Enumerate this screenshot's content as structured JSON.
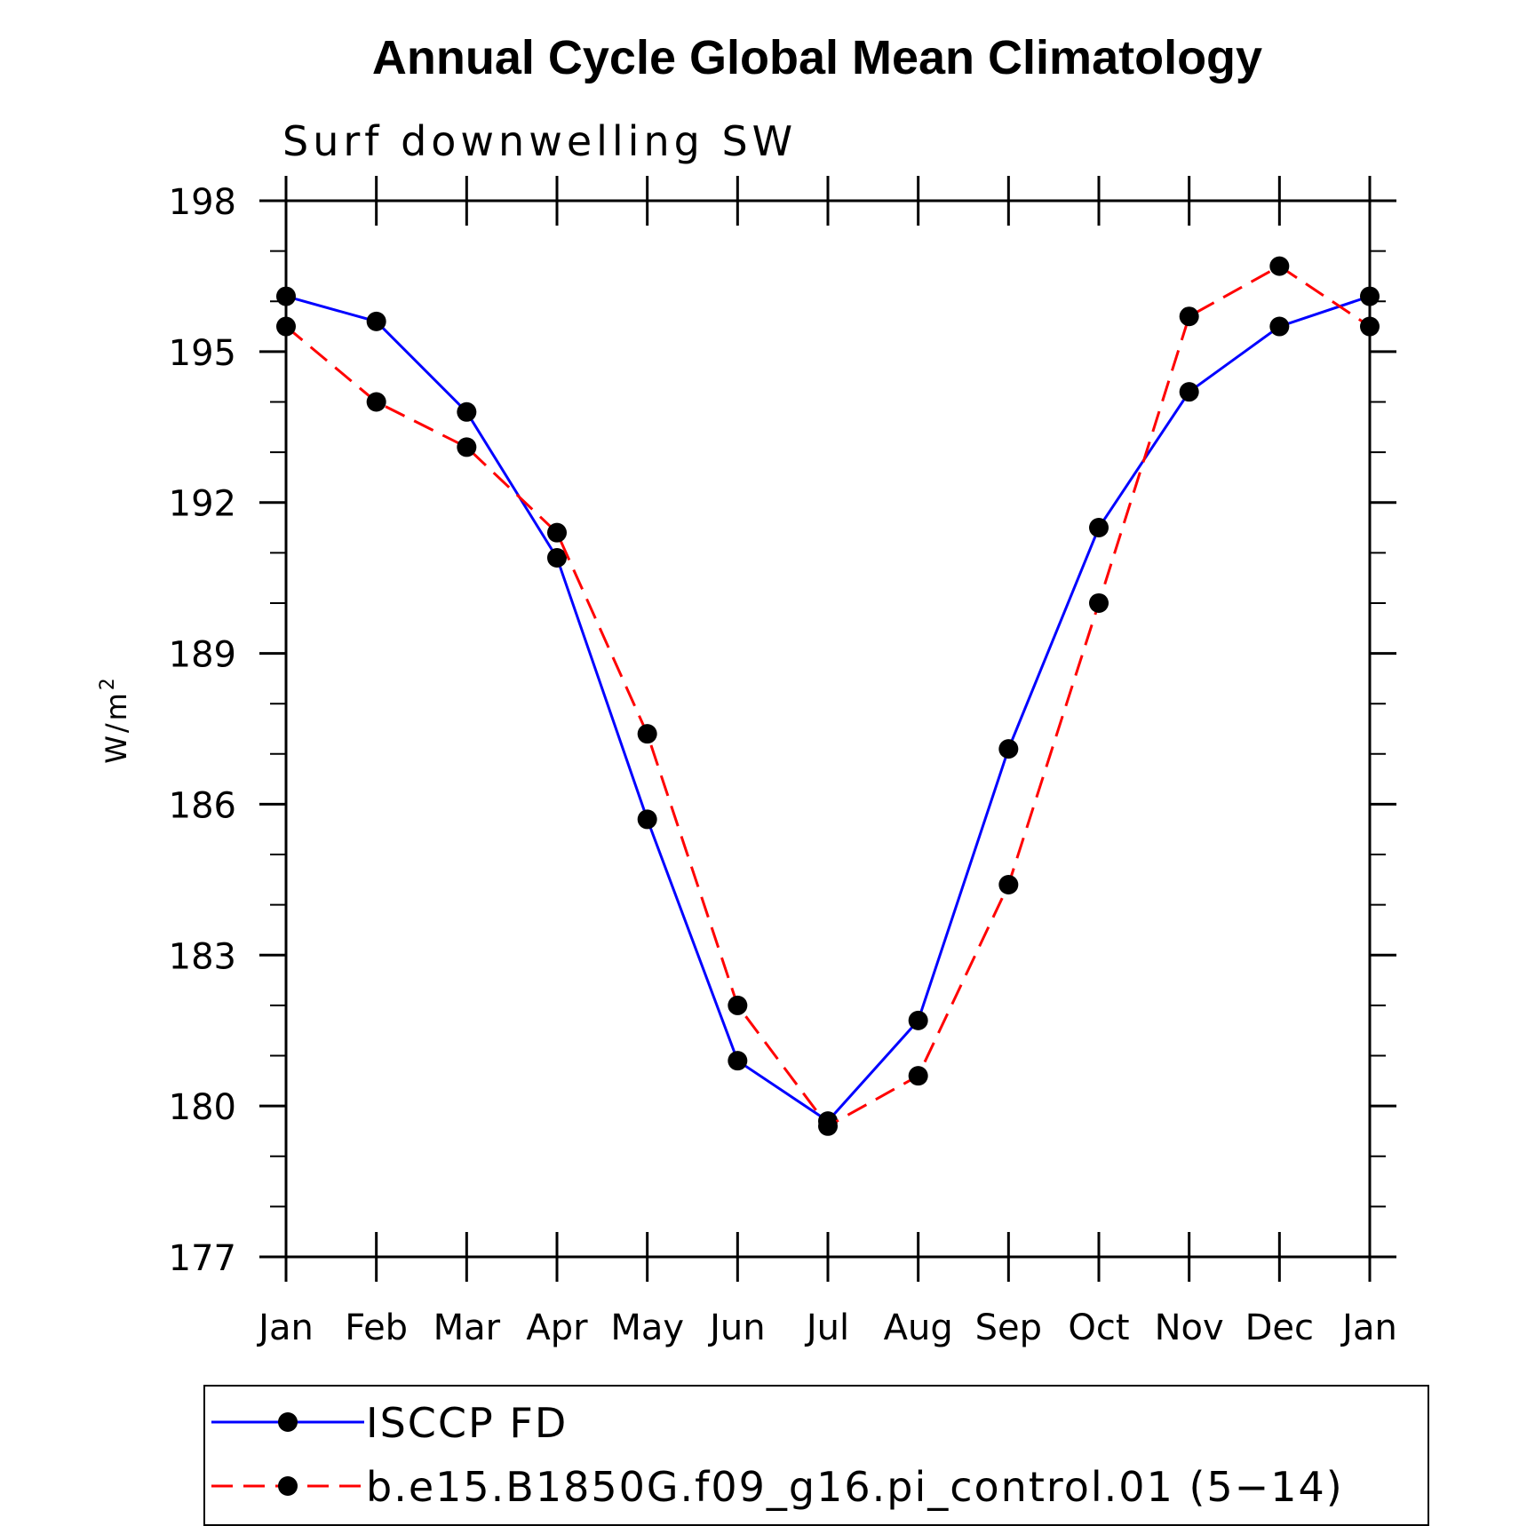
{
  "chart_data": {
    "type": "line",
    "title": "Annual Cycle Global Mean Climatology",
    "subtitle": "Surf downwelling SW",
    "ylabel": "W/m",
    "ylabel_superscript": "2",
    "ylim": [
      177,
      198
    ],
    "yticks": [
      177,
      180,
      183,
      186,
      189,
      192,
      195,
      198
    ],
    "ytick_labels": [
      "177",
      "180",
      "183",
      "186",
      "189",
      "192",
      "195",
      "198"
    ],
    "categories": [
      "Jan",
      "Feb",
      "Mar",
      "Apr",
      "May",
      "Jun",
      "Jul",
      "Aug",
      "Sep",
      "Oct",
      "Nov",
      "Dec",
      "Jan"
    ],
    "grid": false,
    "legend_position": "bottom",
    "series": [
      {
        "name": "ISCCP FD",
        "color": "#0000ff",
        "dash": "solid",
        "marker": "filled-circle",
        "values": [
          196.1,
          195.6,
          193.8,
          190.9,
          185.7,
          180.9,
          179.7,
          181.7,
          187.1,
          191.5,
          194.2,
          195.5,
          196.1
        ]
      },
      {
        "name": "b.e15.B1850G.f09_g16.pi_control.01 (5−14)",
        "color": "#ff0000",
        "dash": "dashed",
        "marker": "filled-circle",
        "values": [
          195.5,
          194.0,
          193.1,
          191.4,
          187.4,
          182.0,
          179.6,
          180.6,
          184.4,
          190.0,
          195.7,
          196.7,
          195.5
        ]
      }
    ]
  }
}
